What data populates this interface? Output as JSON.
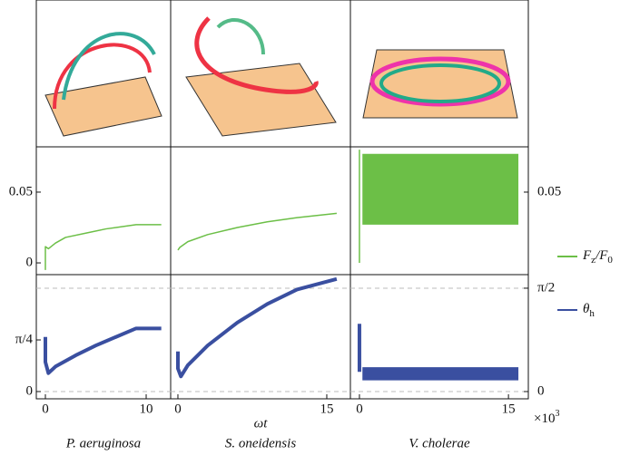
{
  "chart_data": {
    "type": "line",
    "xlabel": "ωt",
    "x_multiplier": {
      "base": "×10",
      "exp": "3"
    },
    "species": [
      "P. aeruginosa",
      "S. oneidensis",
      "V. cholerae"
    ],
    "columns": [
      {
        "xlim": [
          -0.9,
          12.43
        ],
        "xticks": [
          0,
          10
        ]
      },
      {
        "xlim": [
          -0.73,
          17.38
        ],
        "xticks": [
          0,
          15
        ]
      },
      {
        "xlim": [
          -0.91,
          17.0
        ],
        "xticks": [
          0,
          15
        ]
      }
    ],
    "rows": [
      {
        "name_parts": [
          "F",
          "z",
          "/F",
          "0"
        ],
        "color": "#6cbf47",
        "width": 1.5,
        "ylim": [
          -0.0083,
          0.082
        ],
        "yticks": [
          0,
          0.05
        ],
        "y2ticks": [
          0.05
        ],
        "ref_lines": [],
        "panels": [
          {
            "x": [
              0,
              0,
              0.3,
              1,
              2,
              4,
              6,
              9,
              11.5
            ],
            "values": [
              -0.005,
              0.0115,
              0.01,
              0.014,
              0.018,
              0.021,
              0.024,
              0.027,
              0.027
            ]
          },
          {
            "x": [
              0,
              0.2,
              1,
              3,
              6,
              9,
              12,
              16
            ],
            "values": [
              0.009,
              0.011,
              0.015,
              0.02,
              0.025,
              0.029,
              0.032,
              0.035
            ]
          },
          {
            "x": [
              0,
              0
            ],
            "values": [
              0,
              0.08
            ],
            "band": {
              "x": [
                0.3,
                16
              ],
              "lower": [
                0.027,
                0.027
              ],
              "upper": [
                0.077,
                0.077
              ]
            }
          }
        ]
      },
      {
        "name_parts": [
          "θ",
          "h"
        ],
        "color": "#3a4fa0",
        "width": 4,
        "ylim": [
          -0.11,
          1.777
        ],
        "yticks": [
          0,
          {
            "value": 0.785,
            "label": "π/4"
          }
        ],
        "y2ticks": [
          0,
          {
            "value": 1.571,
            "label": "π/2"
          }
        ],
        "ref_lines": [
          0,
          1.571
        ],
        "panels": [
          {
            "x": [
              0,
              0,
              0.3,
              1,
              3,
              5,
              7,
              9,
              11.5
            ],
            "values": [
              0.83,
              0.45,
              0.28,
              0.38,
              0.55,
              0.7,
              0.83,
              0.96,
              0.96
            ]
          },
          {
            "x": [
              0,
              0,
              0.3,
              1,
              3,
              6,
              9,
              12,
              16
            ],
            "values": [
              0.61,
              0.35,
              0.23,
              0.4,
              0.7,
              1.05,
              1.33,
              1.55,
              1.71
            ]
          },
          {
            "x": [
              0,
              0
            ],
            "values": [
              1.03,
              0.3
            ],
            "band": {
              "x": [
                0.3,
                16
              ],
              "lower": [
                0.17,
                0.17
              ],
              "upper": [
                0.37,
                0.37
              ]
            }
          }
        ]
      }
    ]
  }
}
